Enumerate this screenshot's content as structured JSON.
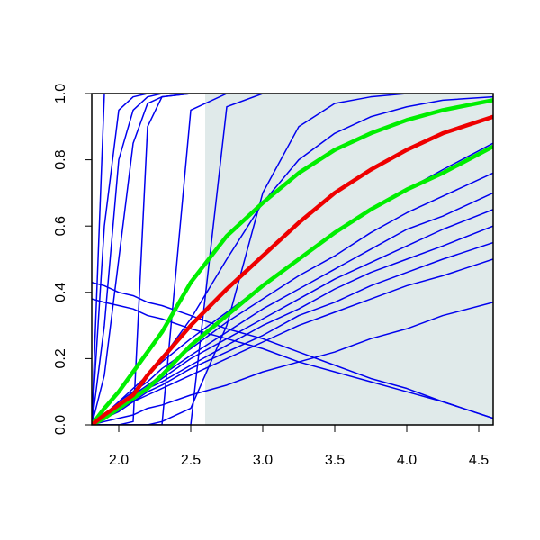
{
  "chart_data": {
    "type": "line",
    "xlim": [
      1.8125,
      4.6
    ],
    "ylim": [
      0,
      1
    ],
    "xticks": [
      {
        "value": 2.0,
        "label": "2.0"
      },
      {
        "value": 2.5,
        "label": "2.5"
      },
      {
        "value": 3.0,
        "label": "3.0"
      },
      {
        "value": 3.5,
        "label": "3.5"
      },
      {
        "value": 4.0,
        "label": "4.0"
      },
      {
        "value": 4.5,
        "label": "4.5"
      }
    ],
    "yticks": [
      {
        "value": 0,
        "label": "0.0"
      },
      {
        "value": 0.2,
        "label": "0.2"
      },
      {
        "value": 0.4,
        "label": "0.4"
      },
      {
        "value": 0.6,
        "label": "0.6"
      },
      {
        "value": 0.8,
        "label": "0.8"
      },
      {
        "value": 1.0,
        "label": "1.0"
      }
    ],
    "shaded_x": [
      2.6,
      4.6
    ],
    "shade_color": "#e0eaea",
    "x": [
      1.8125,
      1.9,
      2.0,
      2.1,
      2.2,
      2.3,
      2.5,
      2.75,
      3.0,
      3.25,
      3.5,
      3.75,
      4.0,
      4.25,
      4.6
    ],
    "series": [
      {
        "color": "#0000ee",
        "width": 1.5,
        "values": [
          0,
          1,
          1,
          1,
          1,
          1,
          1,
          1,
          1,
          1,
          1,
          1,
          1,
          1,
          1
        ]
      },
      {
        "color": "#0000ee",
        "width": 1.5,
        "values": [
          0,
          0.6,
          0.95,
          0.99,
          1,
          1,
          1,
          1,
          1,
          1,
          1,
          1,
          1,
          1,
          1
        ]
      },
      {
        "color": "#0000ee",
        "width": 1.5,
        "values": [
          0,
          0.3,
          0.8,
          0.95,
          0.99,
          1,
          1,
          1,
          1,
          1,
          1,
          1,
          1,
          1,
          1
        ]
      },
      {
        "color": "#0000ee",
        "width": 1.5,
        "values": [
          0,
          0.15,
          0.5,
          0.85,
          0.97,
          0.99,
          1,
          1,
          1,
          1,
          1,
          1,
          1,
          1,
          1
        ]
      },
      {
        "color": "#0000ee",
        "width": 1.5,
        "values": [
          0,
          0,
          0,
          0.01,
          0.9,
          0.99,
          1,
          1,
          1,
          1,
          1,
          1,
          1,
          1,
          1
        ]
      },
      {
        "color": "#0000ee",
        "width": 1.5,
        "values": [
          0,
          0,
          0,
          0,
          0,
          0,
          0.95,
          1,
          1,
          1,
          1,
          1,
          1,
          1,
          1
        ]
      },
      {
        "color": "#0000ee",
        "width": 1.5,
        "values": [
          0,
          0,
          0,
          0,
          0,
          0,
          0,
          0.96,
          1,
          1,
          1,
          1,
          1,
          1,
          1
        ]
      },
      {
        "color": "#0000ee",
        "width": 1.5,
        "values": [
          0,
          0,
          0,
          0,
          0,
          0.01,
          0.05,
          0.3,
          0.7,
          0.9,
          0.97,
          0.99,
          1,
          1,
          1
        ]
      },
      {
        "color": "#0000ee",
        "width": 1.5,
        "values": [
          0,
          0.02,
          0.05,
          0.1,
          0.15,
          0.2,
          0.32,
          0.5,
          0.67,
          0.8,
          0.88,
          0.93,
          0.96,
          0.98,
          0.99
        ]
      },
      {
        "color": "#0000ee",
        "width": 1.5,
        "values": [
          0.43,
          0.42,
          0.4,
          0.39,
          0.37,
          0.36,
          0.33,
          0.29,
          0.26,
          0.22,
          0.18,
          0.14,
          0.11,
          0.07,
          0.02
        ]
      },
      {
        "color": "#0000ee",
        "width": 1.5,
        "values": [
          0.38,
          0.37,
          0.36,
          0.35,
          0.33,
          0.32,
          0.29,
          0.26,
          0.23,
          0.19,
          0.16,
          0.13,
          0.1,
          0.07,
          0.02
        ]
      },
      {
        "color": "#0000ee",
        "width": 1.5,
        "values": [
          0,
          0.01,
          0.02,
          0.03,
          0.05,
          0.06,
          0.09,
          0.12,
          0.16,
          0.19,
          0.22,
          0.26,
          0.29,
          0.33,
          0.37
        ]
      },
      {
        "color": "#0000ee",
        "width": 1.5,
        "values": [
          0,
          0.03,
          0.07,
          0.11,
          0.15,
          0.19,
          0.26,
          0.34,
          0.42,
          0.5,
          0.58,
          0.65,
          0.71,
          0.77,
          0.85
        ]
      },
      {
        "color": "#0000ee",
        "width": 1.5,
        "values": [
          0,
          0.03,
          0.07,
          0.1,
          0.13,
          0.17,
          0.23,
          0.31,
          0.38,
          0.45,
          0.51,
          0.58,
          0.64,
          0.69,
          0.76
        ]
      },
      {
        "color": "#0000ee",
        "width": 1.5,
        "values": [
          0,
          0.03,
          0.06,
          0.09,
          0.12,
          0.15,
          0.21,
          0.28,
          0.35,
          0.41,
          0.47,
          0.53,
          0.59,
          0.63,
          0.7
        ]
      },
      {
        "color": "#0000ee",
        "width": 1.5,
        "values": [
          0,
          0.03,
          0.06,
          0.09,
          0.11,
          0.14,
          0.2,
          0.26,
          0.32,
          0.38,
          0.44,
          0.49,
          0.54,
          0.59,
          0.65
        ]
      },
      {
        "color": "#0000ee",
        "width": 1.5,
        "values": [
          0,
          0.02,
          0.05,
          0.08,
          0.11,
          0.13,
          0.18,
          0.24,
          0.3,
          0.35,
          0.41,
          0.46,
          0.5,
          0.54,
          0.6
        ]
      },
      {
        "color": "#0000ee",
        "width": 1.5,
        "values": [
          0,
          0.02,
          0.05,
          0.07,
          0.1,
          0.12,
          0.17,
          0.22,
          0.27,
          0.33,
          0.37,
          0.42,
          0.46,
          0.5,
          0.55
        ]
      },
      {
        "color": "#0000ee",
        "width": 1.5,
        "values": [
          0,
          0.02,
          0.04,
          0.07,
          0.09,
          0.11,
          0.15,
          0.2,
          0.25,
          0.3,
          0.34,
          0.38,
          0.42,
          0.45,
          0.5
        ]
      },
      {
        "color": "#00ee00",
        "width": 4.5,
        "values": [
          0,
          0.05,
          0.1,
          0.16,
          0.22,
          0.28,
          0.43,
          0.57,
          0.67,
          0.76,
          0.83,
          0.88,
          0.92,
          0.95,
          0.98
        ]
      },
      {
        "color": "#00ee00",
        "width": 4.5,
        "values": [
          0,
          0.02,
          0.05,
          0.08,
          0.11,
          0.15,
          0.24,
          0.33,
          0.42,
          0.5,
          0.58,
          0.65,
          0.71,
          0.76,
          0.84
        ]
      },
      {
        "color": "#ee0000",
        "width": 4.5,
        "values": [
          0,
          0.03,
          0.06,
          0.09,
          0.15,
          0.2,
          0.3,
          0.41,
          0.51,
          0.61,
          0.7,
          0.77,
          0.83,
          0.88,
          0.93
        ]
      }
    ]
  }
}
